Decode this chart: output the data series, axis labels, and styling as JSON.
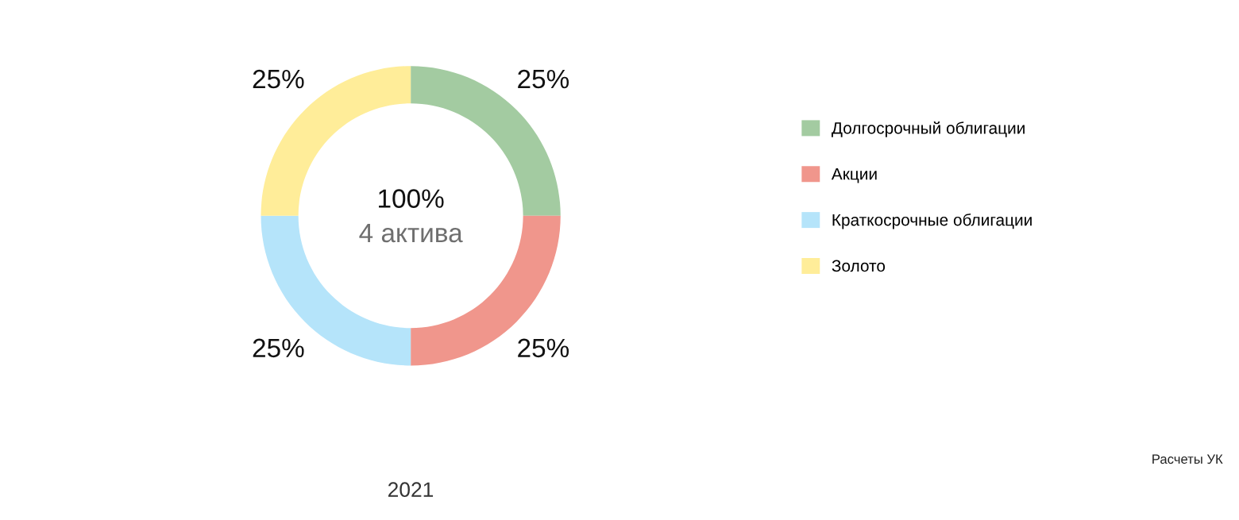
{
  "chart_data": {
    "type": "donut",
    "categories": [
      "Долгосрочный облигации",
      "Акции",
      "Краткосрочные облигации",
      "Золото"
    ],
    "values": [
      25,
      25,
      25,
      25
    ],
    "colors": [
      "#a3cba1",
      "#f0968c",
      "#b5e4fa",
      "#ffed99"
    ],
    "value_labels": [
      "25%",
      "25%",
      "25%",
      "25%"
    ],
    "xlabel": "2021",
    "annotations": [
      "100%",
      "4 актива",
      "Расчеты УК"
    ],
    "legend": "right"
  }
}
